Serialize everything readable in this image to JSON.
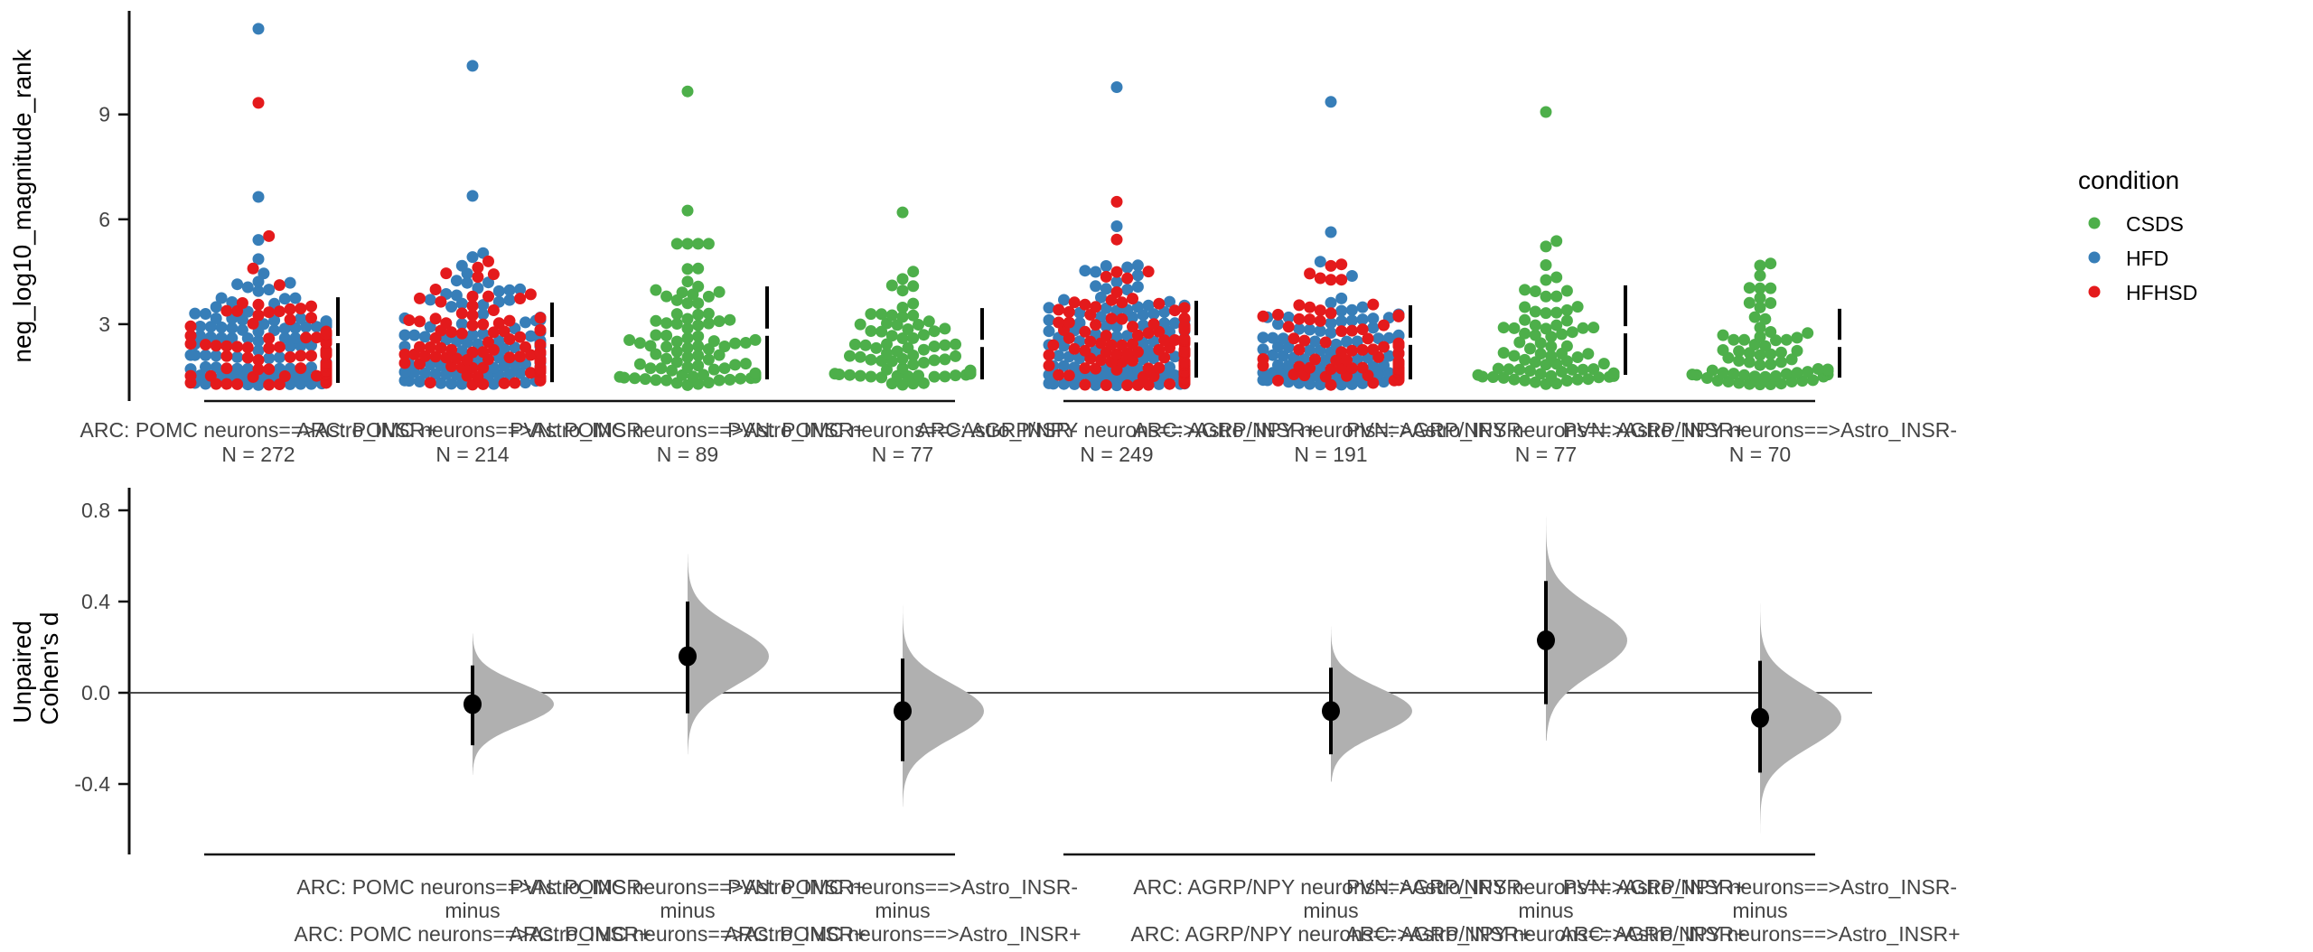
{
  "chart_data": [
    {
      "type": "scatter",
      "subtype": "swarm",
      "ylabel": "neg_log10_magnitude_rank",
      "ylim": [
        0.83,
        12.05
      ],
      "yticks": [
        3,
        6,
        9
      ],
      "grid": false,
      "legend": {
        "title": "condition",
        "placement": "right",
        "entries": [
          {
            "label": "CSDS",
            "color": "#4daf4a"
          },
          {
            "label": "HFD",
            "color": "#377eb8"
          },
          {
            "label": "HFHSD",
            "color": "#e41a1c"
          }
        ]
      },
      "groups": [
        {
          "categories": [
            {
              "label": "ARC: POMC neurons==>Astro_INSR+",
              "n_label": "N = 272",
              "n": 272,
              "conditions": [
                "HFD",
                "HFHSD"
              ],
              "mean": 2.56,
              "sd_low": 1.32,
              "sd_high": 3.77,
              "max_cluster": 6.0,
              "outliers": [
                {
                  "y": 11.45,
                  "condition": "HFD"
                },
                {
                  "y": 9.33,
                  "condition": "HFHSD"
                },
                {
                  "y": 6.64,
                  "condition": "HFD"
                }
              ]
            },
            {
              "label": "ARC: POMC neurons==>Astro_INSR-",
              "n_label": "N = 214",
              "n": 214,
              "conditions": [
                "HFD",
                "HFHSD"
              ],
              "mean": 2.53,
              "sd_low": 1.34,
              "sd_high": 3.62,
              "max_cluster": 5.8,
              "outliers": [
                {
                  "y": 10.39,
                  "condition": "HFD"
                },
                {
                  "y": 6.67,
                  "condition": "HFD"
                }
              ]
            },
            {
              "label": "PVN: POMC neurons==>Astro_INSR+",
              "n_label": "N = 89",
              "n": 89,
              "conditions": [
                "CSDS"
              ],
              "mean": 2.77,
              "sd_low": 1.42,
              "sd_high": 4.08,
              "max_cluster": 5.3,
              "outliers": [
                {
                  "y": 9.66,
                  "condition": "CSDS"
                },
                {
                  "y": 6.25,
                  "condition": "CSDS"
                }
              ]
            },
            {
              "label": "PVN: POMC neurons==>Astro_INSR-",
              "n_label": "N = 77",
              "n": 77,
              "conditions": [
                "CSDS"
              ],
              "mean": 2.45,
              "sd_low": 1.42,
              "sd_high": 3.46,
              "max_cluster": 5.3,
              "outliers": [
                {
                  "y": 6.2,
                  "condition": "CSDS"
                }
              ]
            }
          ]
        },
        {
          "categories": [
            {
              "label": "ARC: AGRP/NPY neurons==>Astro_INSR+",
              "n_label": "N = 249",
              "n": 249,
              "conditions": [
                "HFD",
                "HFHSD"
              ],
              "mean": 2.58,
              "sd_low": 1.47,
              "sd_high": 3.67,
              "max_cluster": 5.8,
              "outliers": [
                {
                  "y": 9.78,
                  "condition": "HFD"
                },
                {
                  "y": 6.5,
                  "condition": "HFHSD"
                }
              ]
            },
            {
              "label": "ARC: AGRP/NPY neurons==>Astro_INSR-",
              "n_label": "N = 191",
              "n": 191,
              "conditions": [
                "HFD",
                "HFHSD"
              ],
              "mean": 2.51,
              "sd_low": 1.42,
              "sd_high": 3.54,
              "max_cluster": 5.7,
              "outliers": [
                {
                  "y": 9.36,
                  "condition": "HFD"
                }
              ]
            },
            {
              "label": "PVN: AGRP/NPY neurons==>Astro_INSR+",
              "n_label": "N = 77",
              "n": 77,
              "conditions": [
                "CSDS"
              ],
              "mean": 2.84,
              "sd_low": 1.55,
              "sd_high": 4.11,
              "max_cluster": 5.6,
              "outliers": [
                {
                  "y": 9.07,
                  "condition": "CSDS"
                }
              ]
            },
            {
              "label": "PVN: AGRP/NPY neurons==>Astro_INSR-",
              "n_label": "N = 70",
              "n": 70,
              "conditions": [
                "CSDS"
              ],
              "mean": 2.45,
              "sd_low": 1.47,
              "sd_high": 3.44,
              "max_cluster": 5.4,
              "outliers": []
            }
          ]
        }
      ]
    },
    {
      "type": "scatter",
      "subtype": "estimation",
      "ylabel_lines": [
        "Unpaired",
        "Cohen's d"
      ],
      "ylim": [
        -0.705,
        0.9
      ],
      "yticks": [
        {
          "value": 0.8,
          "label": "0.8"
        },
        {
          "value": 0.4,
          "label": "0.4"
        },
        {
          "value": 0.0,
          "label": "0.0"
        },
        {
          "value": -0.4,
          "label": "-0.4"
        }
      ],
      "reference_line": 0.0,
      "grid": false,
      "groups": [
        {
          "comparisons": [
            {
              "test": "ARC: POMC neurons==>Astro_INSR-",
              "minus": "minus",
              "control": "ARC: POMC neurons==>Astro_INSR+",
              "d": -0.05,
              "ci_low": -0.23,
              "ci_high": 0.12,
              "dist_min": -0.36,
              "dist_max": 0.26,
              "sd": 0.09
            },
            {
              "test": "PVN: POMC neurons==>Astro_INSR+",
              "minus": "minus",
              "control": "ARC: POMC neurons==>Astro_INSR+",
              "d": 0.16,
              "ci_low": -0.09,
              "ci_high": 0.4,
              "dist_min": -0.27,
              "dist_max": 0.61,
              "sd": 0.125
            },
            {
              "test": "PVN: POMC neurons==>Astro_INSR-",
              "minus": "minus",
              "control": "ARC: POMC neurons==>Astro_INSR+",
              "d": -0.08,
              "ci_low": -0.3,
              "ci_high": 0.15,
              "dist_min": -0.5,
              "dist_max": 0.41,
              "sd": 0.12
            }
          ]
        },
        {
          "comparisons": [
            {
              "test": "ARC: AGRP/NPY neurons==>Astro_INSR-",
              "minus": "minus",
              "control": "ARC: AGRP/NPY neurons==>Astro_INSR+",
              "d": -0.08,
              "ci_low": -0.27,
              "ci_high": 0.11,
              "dist_min": -0.39,
              "dist_max": 0.29,
              "sd": 0.1
            },
            {
              "test": "PVN: AGRP/NPY neurons==>Astro_INSR+",
              "minus": "minus",
              "control": "ARC: AGRP/NPY neurons==>Astro_INSR+",
              "d": 0.23,
              "ci_low": -0.05,
              "ci_high": 0.49,
              "dist_min": -0.21,
              "dist_max": 0.79,
              "sd": 0.14
            },
            {
              "test": "PVN: AGRP/NPY neurons==>Astro_INSR-",
              "minus": "minus",
              "control": "ARC: AGRP/NPY neurons==>Astro_INSR+",
              "d": -0.11,
              "ci_low": -0.35,
              "ci_high": 0.14,
              "dist_min": -0.62,
              "dist_max": 0.41,
              "sd": 0.13
            }
          ]
        }
      ]
    }
  ]
}
